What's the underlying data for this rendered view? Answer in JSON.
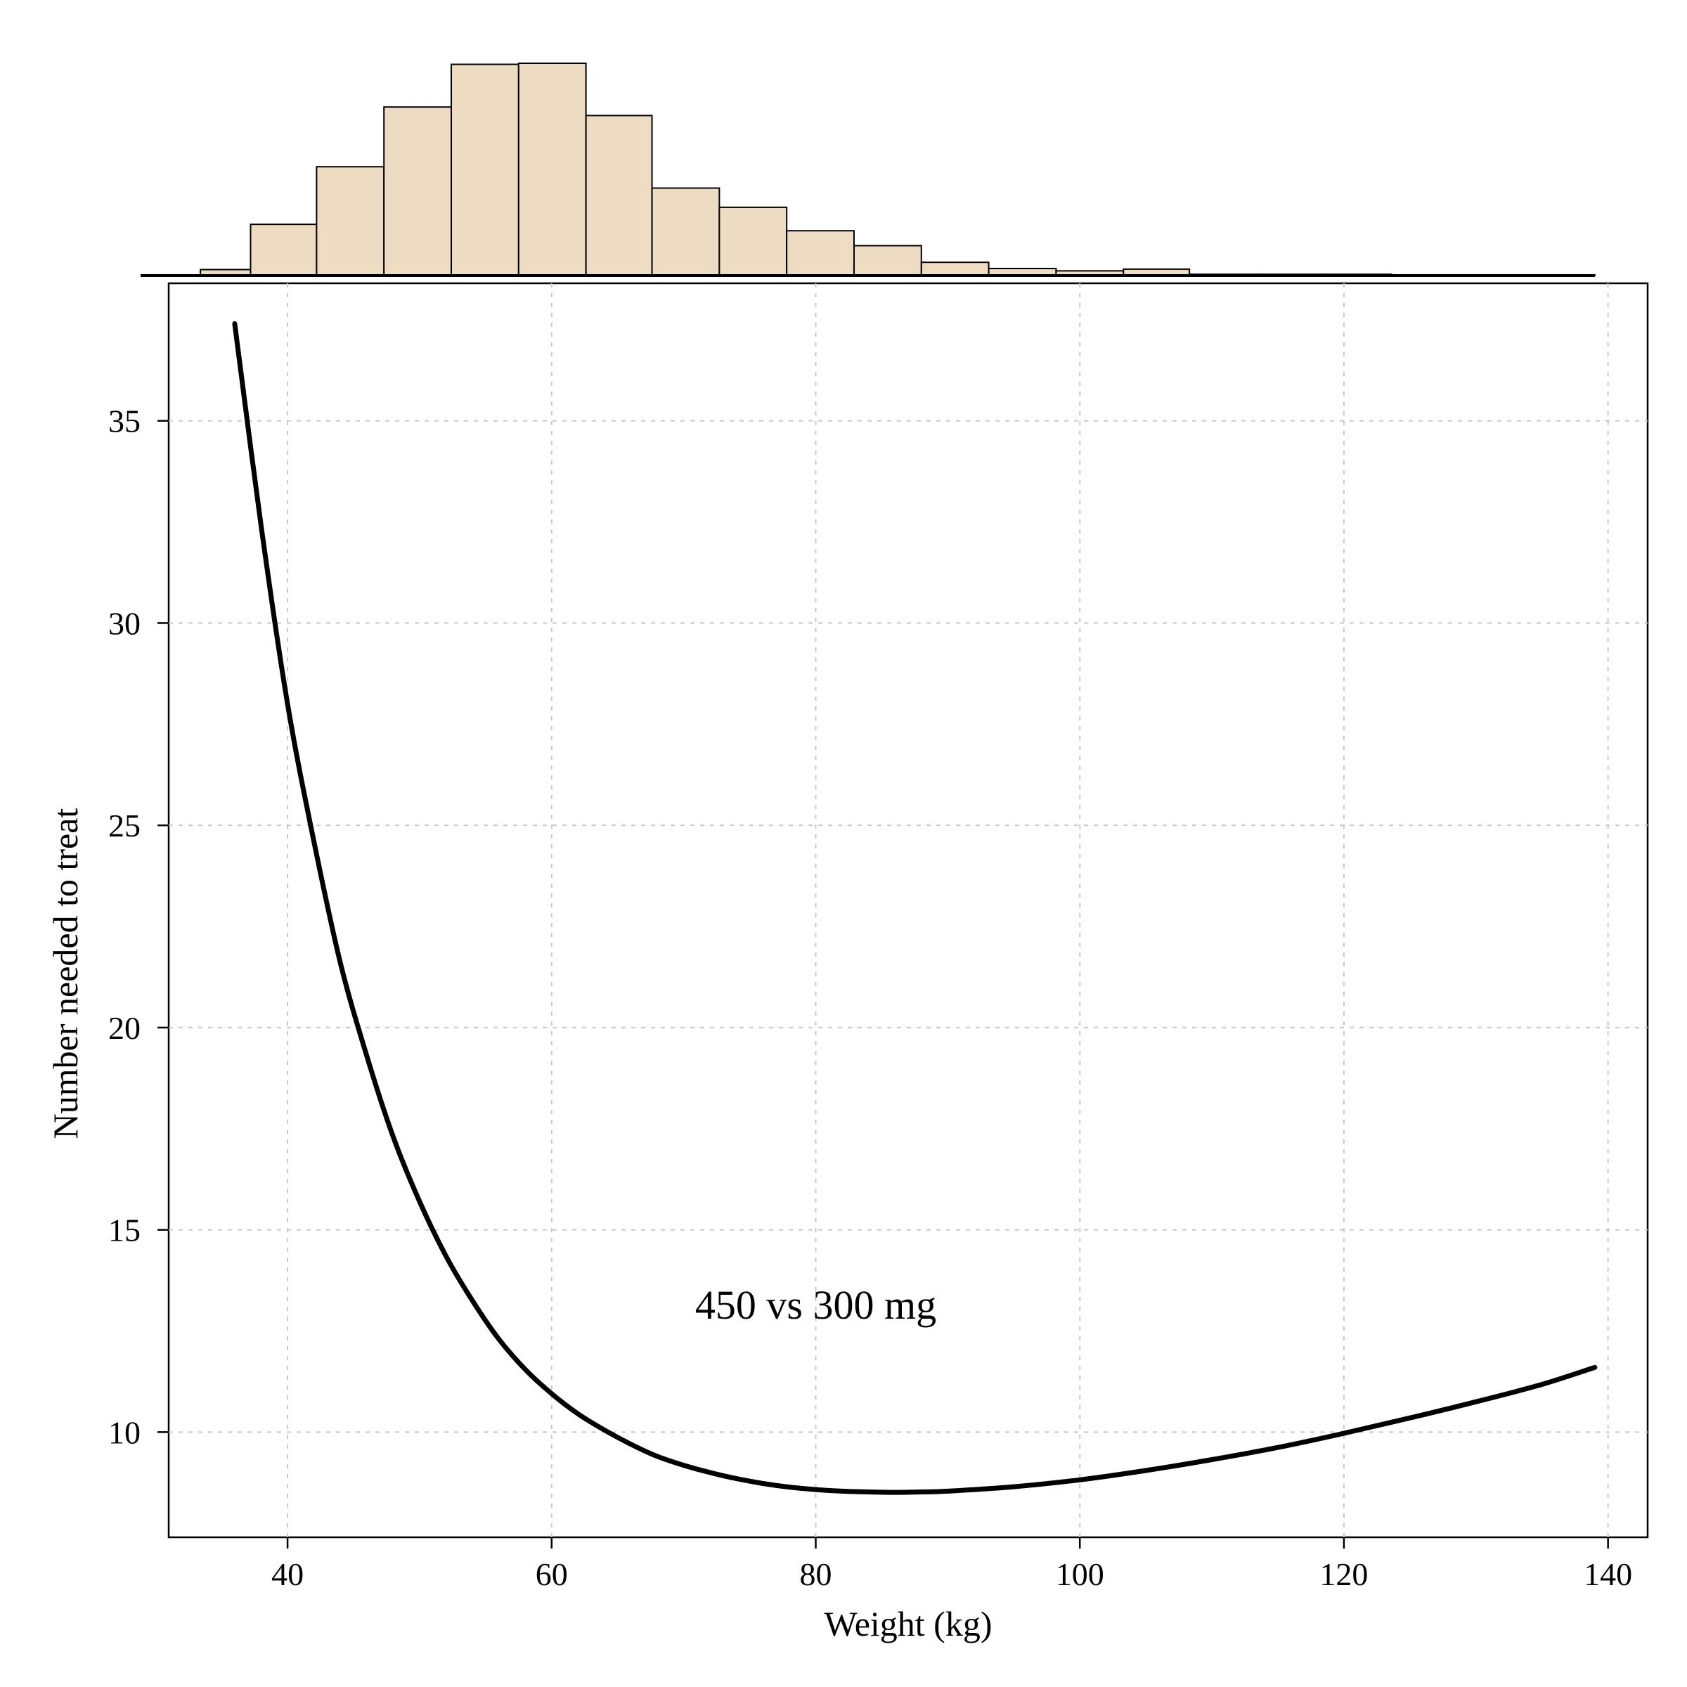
{
  "chart_data": [
    {
      "type": "line",
      "title": "",
      "xlabel": "Weight (kg)",
      "ylabel": "Number needed to treat",
      "xlim": [
        31,
        143
      ],
      "ylim": [
        7.4,
        38.4
      ],
      "xticks": [
        40,
        60,
        80,
        100,
        120,
        140
      ],
      "yticks": [
        10,
        15,
        20,
        25,
        30,
        35
      ],
      "grid": true,
      "annotation": "450 vs 300 mg",
      "annotation_at": [
        80,
        12.8
      ],
      "line_color": "#000000",
      "series": [
        {
          "x": [
            36,
            38,
            40,
            42,
            44,
            46,
            48,
            50,
            52,
            54,
            56,
            58,
            60,
            62,
            64,
            66,
            68,
            70,
            72,
            74,
            76,
            78,
            80,
            82,
            84,
            86,
            88,
            90,
            95,
            100,
            105,
            110,
            115,
            120,
            125,
            130,
            135,
            139
          ],
          "y": [
            37.4,
            32.4,
            28.0,
            24.6,
            21.6,
            19.3,
            17.3,
            15.7,
            14.35,
            13.25,
            12.3,
            11.55,
            10.95,
            10.45,
            10.05,
            9.7,
            9.4,
            9.18,
            9.0,
            8.85,
            8.73,
            8.64,
            8.58,
            8.54,
            8.52,
            8.51,
            8.52,
            8.54,
            8.65,
            8.82,
            9.05,
            9.32,
            9.62,
            9.97,
            10.35,
            10.75,
            11.18,
            11.6
          ]
        }
      ]
    },
    {
      "type": "histogram",
      "bar_color": "#eddcc2",
      "bins": [
        [
          31,
          33.4,
          0.0
        ],
        [
          33.4,
          37.2,
          0.28
        ],
        [
          37.2,
          42.2,
          2.4
        ],
        [
          42.2,
          47.3,
          5.1
        ],
        [
          47.3,
          52.4,
          7.9
        ],
        [
          52.4,
          57.5,
          9.9
        ],
        [
          57.5,
          62.6,
          9.95
        ],
        [
          62.6,
          67.6,
          7.5
        ],
        [
          67.6,
          72.7,
          4.1
        ],
        [
          72.7,
          77.8,
          3.2
        ],
        [
          77.8,
          82.9,
          2.1
        ],
        [
          82.9,
          88.0,
          1.4
        ],
        [
          88.0,
          93.1,
          0.62
        ],
        [
          93.1,
          98.2,
          0.33
        ],
        [
          98.2,
          103.3,
          0.22
        ],
        [
          103.3,
          108.3,
          0.3
        ],
        [
          108.3,
          113.4,
          0.06
        ],
        [
          113.4,
          118.5,
          0.06
        ],
        [
          118.5,
          123.6,
          0.06
        ],
        [
          123.6,
          128.7,
          0.03
        ],
        [
          128.7,
          133.8,
          0.03
        ],
        [
          133.8,
          139.0,
          0.03
        ]
      ]
    }
  ]
}
